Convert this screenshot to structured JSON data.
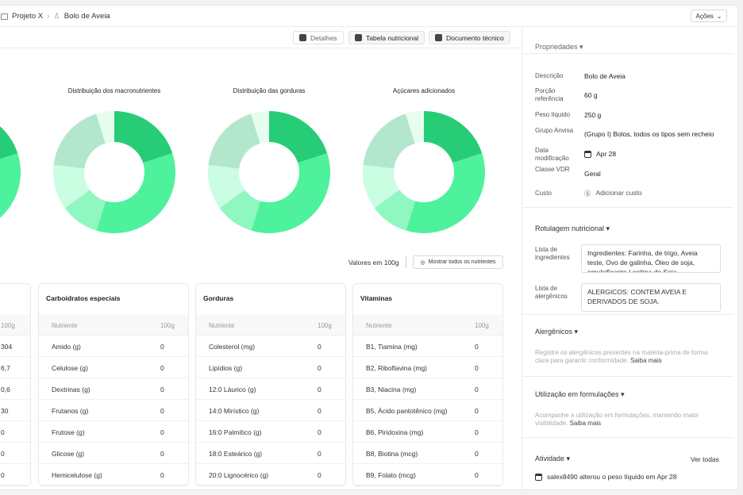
{
  "breadcrumb": {
    "project": "Projeto X",
    "item": "Bolo de Aveia"
  },
  "header": {
    "actions_label": "Ações"
  },
  "toolbar": {
    "details": "Detalhes",
    "nutrition_table": "Tabela nutricional",
    "tech_doc": "Documento técnico"
  },
  "charts": {
    "titles": [
      "Distribuição dos macronutrientes",
      "Distribuição das gorduras",
      "Açúcares adicionados"
    ]
  },
  "chart_data": {
    "type": "pie",
    "donut": true,
    "slice_shares_percent_estimated": [
      20,
      34.7,
      10.3,
      11.9,
      18.3,
      4.8
    ],
    "colors": [
      "#27cc77",
      "#4ef29c",
      "#8ff7c0",
      "#cbfde2",
      "#b3e7cd",
      "#e6fdf0"
    ]
  },
  "values_bar": {
    "label": "Valores em 100g",
    "show_all": "Mostrar todos os nutrientes"
  },
  "tables": [
    {
      "title": "",
      "head": [
        "",
        "100g"
      ],
      "rows": [
        [
          "",
          "304"
        ],
        [
          "",
          "6,7"
        ],
        [
          "",
          "0,6"
        ],
        [
          "",
          "30"
        ],
        [
          "",
          "0"
        ],
        [
          "",
          "0"
        ],
        [
          "",
          "0"
        ]
      ]
    },
    {
      "title": "Carboidratos especiais",
      "head": [
        "Nutriente",
        "100g"
      ],
      "rows": [
        [
          "Amido (g)",
          "0"
        ],
        [
          "Celulose (g)",
          "0"
        ],
        [
          "Dextrinas (g)",
          "0"
        ],
        [
          "Frutanos (g)",
          "0"
        ],
        [
          "Frutose (g)",
          "0"
        ],
        [
          "Glicose (g)",
          "0"
        ],
        [
          "Hemicelulose (g)",
          "0"
        ]
      ]
    },
    {
      "title": "Gorduras",
      "head": [
        "Nutriente",
        "100g"
      ],
      "rows": [
        [
          "Colesterol (mg)",
          "0"
        ],
        [
          "Lipídios (g)",
          "0"
        ],
        [
          "12:0 Láurico (g)",
          "0"
        ],
        [
          "14:0 Mirístico (g)",
          "0"
        ],
        [
          "16:0 Palmítico (g)",
          "0"
        ],
        [
          "18:0 Esteárico (g)",
          "0"
        ],
        [
          "20:0 Lignocérico (g)",
          "0"
        ]
      ]
    },
    {
      "title": "Vitaminas",
      "head": [
        "Nutriente",
        "100g"
      ],
      "rows": [
        [
          "B1, Tiamina (mg)",
          "0"
        ],
        [
          "B2, Riboflavina (mg)",
          "0"
        ],
        [
          "B3, Niacina (mg)",
          "0"
        ],
        [
          "B5, Ácido pantotênico (mg)",
          "0"
        ],
        [
          "B6, Piridoxina (mg)",
          "0"
        ],
        [
          "B8, Biotina (mcg)",
          "0"
        ],
        [
          "B9, Folato (mcg)",
          "0"
        ]
      ]
    }
  ],
  "side": {
    "props_title": "Propriedades",
    "props": [
      {
        "label": "Descrição",
        "value": "Bolo de Aveia"
      },
      {
        "label": "Porção referência",
        "value": "60 g"
      },
      {
        "label": "Peso líquido",
        "value": "250 g"
      },
      {
        "label": "Grupo Anvisa",
        "value": "(Grupo I) Bolos, todos os tipos sem recheio"
      },
      {
        "label": "Data modificação",
        "value": "Apr 28"
      },
      {
        "label": "Classe VDR",
        "value": "Geral"
      },
      {
        "label": "Custo",
        "value": "Adicionar custo"
      }
    ],
    "labeling_title": "Rotulagem nutricional",
    "ingredients_label": "Lista de ingredientes",
    "ingredients": "Ingredientes: Farinha, de trigo, Aveia teste, Ovo de galinha, Óleo de soja, emulsificante Lecitina de Soja",
    "allergens_label": "Lista de alergênicos",
    "allergens": "ALERGICOS: CONTEM AVEIA E DERIVADOS DE SOJA.",
    "allergen_title": "Alergênicos",
    "allergen_text": "Registre os alergênicos presentes na matéria-prima de forma clara para garantir conformidade.",
    "learn_more": "Saiba mais",
    "usage_title": "Utilização em formulações",
    "usage_text": "Acompanhe a utilização em formulações, mantendo maior visibilidade.",
    "activity_title": "Atividade",
    "see_all": "Ver todas",
    "activity_item": "salex8490 alterou o peso líquido em Apr 28"
  }
}
